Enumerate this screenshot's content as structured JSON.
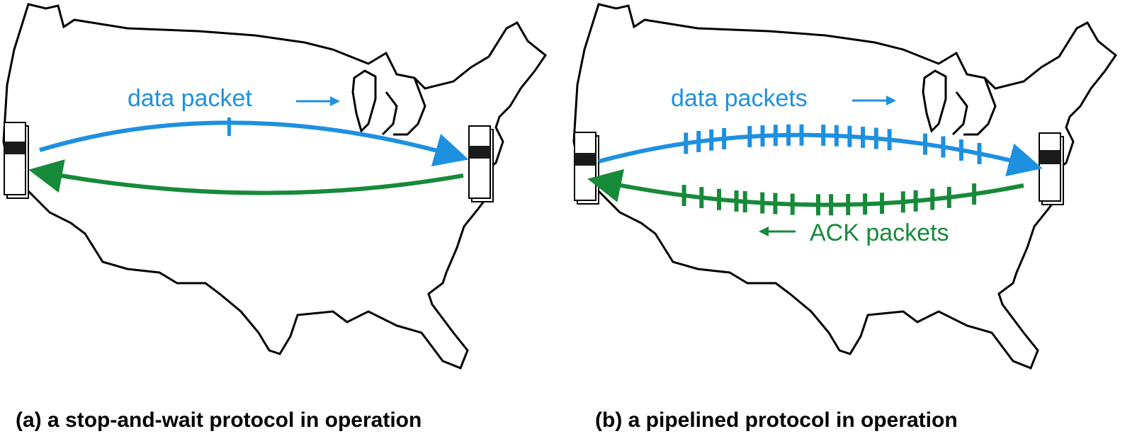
{
  "colors": {
    "data": "#1e90e0",
    "ack": "#178a3a",
    "outline": "#000000",
    "host_band": "#1a1a1a"
  },
  "panel_a": {
    "data_label": "data packet",
    "caption": "(a) a stop-and-wait protocol in operation",
    "data_packet_count": 1
  },
  "panel_b": {
    "data_label": "data packets",
    "ack_label": "ACK packets",
    "caption": "(b) a pipelined protocol in operation"
  }
}
